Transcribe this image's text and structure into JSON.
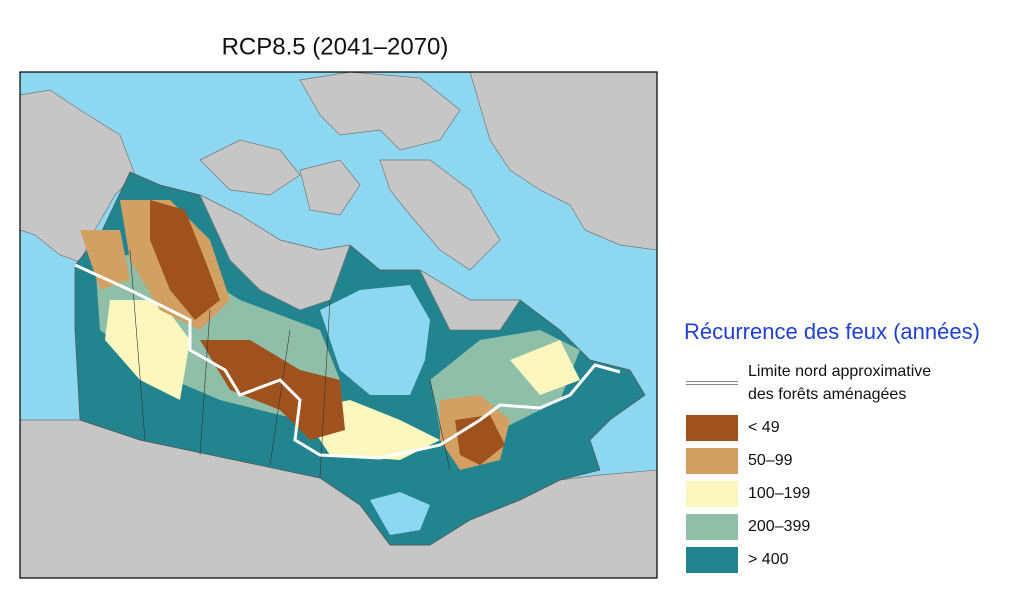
{
  "title": "RCP8.5 (2041–2070)",
  "legend": {
    "title": "Récurrence des feux (années)",
    "boundary": {
      "lines": [
        "Limite nord approximative",
        "des forêts aménagées"
      ]
    },
    "classes": [
      {
        "label": "< 49",
        "color": "#a0521e"
      },
      {
        "label": "50–99",
        "color": "#d3a064"
      },
      {
        "label": "100–199",
        "color": "#fcf6bf"
      },
      {
        "label": "200–399",
        "color": "#8fbfa8"
      },
      {
        "label": "> 400",
        "color": "#22848f"
      }
    ]
  }
}
